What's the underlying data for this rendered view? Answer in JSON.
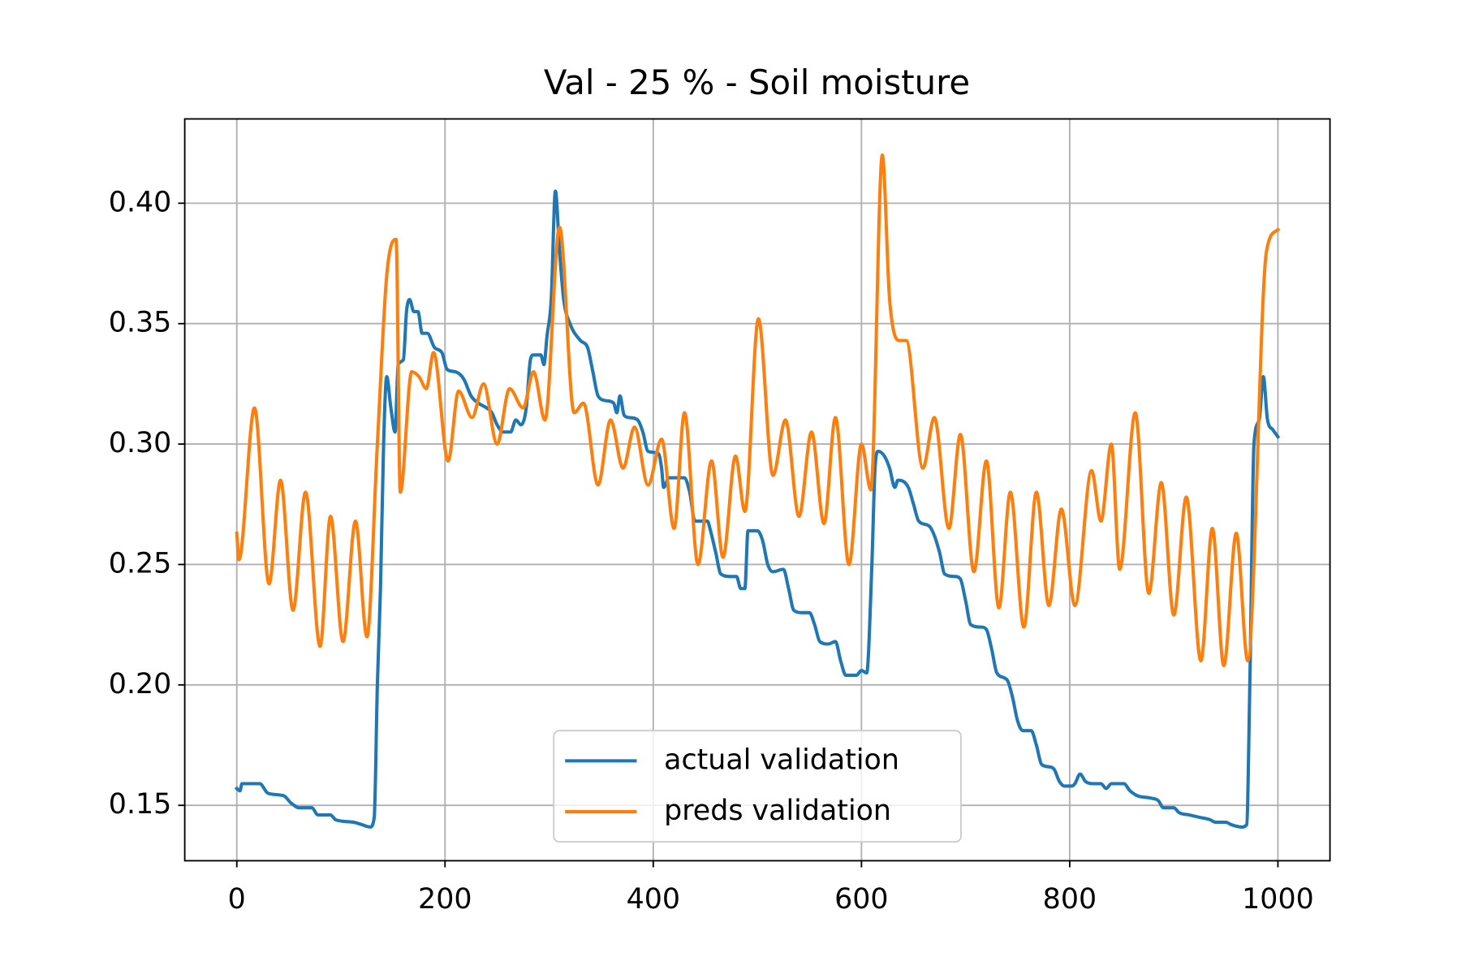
{
  "chart_data": {
    "type": "line",
    "title": "Val - 25 % - Soil moisture",
    "xlim": [
      -50,
      1050
    ],
    "xticks": [
      0,
      200,
      400,
      600,
      800,
      1000
    ],
    "ylim": [
      0.127,
      0.435
    ],
    "yticks": [
      {
        "value": 0.15,
        "label": "0.15"
      },
      {
        "value": 0.2,
        "label": "0.20"
      },
      {
        "value": 0.25,
        "label": "0.25"
      },
      {
        "value": 0.3,
        "label": "0.30"
      },
      {
        "value": 0.35,
        "label": "0.35"
      },
      {
        "value": 0.4,
        "label": "0.40"
      }
    ],
    "grid": true,
    "legend": "lower center",
    "series": [
      {
        "name": "actual validation",
        "color": "#1f77b4",
        "x": [
          0,
          3,
          5,
          22,
          30,
          45,
          52,
          60,
          72,
          78,
          90,
          95,
          112,
          120,
          128,
          132,
          135,
          138,
          141,
          144,
          148,
          152,
          155,
          160,
          163,
          166,
          170,
          174,
          178,
          183,
          190,
          197,
          202,
          210,
          218,
          225,
          232,
          240,
          245,
          250,
          256,
          263,
          268,
          273,
          278,
          282,
          285,
          292,
          295,
          298,
          302,
          306,
          310,
          314,
          320,
          330,
          337,
          342,
          347,
          355,
          362,
          365,
          368,
          372,
          377,
          385,
          390,
          395,
          405,
          408,
          410,
          415,
          430,
          435,
          440,
          452,
          455,
          460,
          465,
          475,
          480,
          484,
          488,
          491,
          500,
          505,
          510,
          515,
          525,
          530,
          535,
          543,
          550,
          555,
          560,
          568,
          575,
          580,
          585,
          595,
          600,
          605,
          610,
          613,
          616,
          622,
          627,
          632,
          635,
          645,
          650,
          655,
          665,
          670,
          675,
          680,
          690,
          695,
          700,
          705,
          715,
          720,
          725,
          730,
          740,
          745,
          750,
          755,
          763,
          768,
          773,
          780,
          785,
          790,
          795,
          802,
          805,
          810,
          815,
          822,
          830,
          835,
          840,
          852,
          858,
          865,
          878,
          885,
          890,
          900,
          905,
          915,
          925,
          935,
          940,
          950,
          955,
          965,
          970,
          973,
          977,
          982,
          986,
          990,
          995,
          1000
        ],
        "values": [
          0.157,
          0.156,
          0.159,
          0.159,
          0.155,
          0.154,
          0.151,
          0.149,
          0.149,
          0.146,
          0.146,
          0.144,
          0.143,
          0.142,
          0.141,
          0.145,
          0.2,
          0.24,
          0.3,
          0.328,
          0.315,
          0.305,
          0.333,
          0.335,
          0.355,
          0.36,
          0.355,
          0.355,
          0.346,
          0.346,
          0.34,
          0.338,
          0.331,
          0.33,
          0.327,
          0.32,
          0.317,
          0.315,
          0.313,
          0.308,
          0.305,
          0.305,
          0.31,
          0.308,
          0.315,
          0.335,
          0.337,
          0.337,
          0.333,
          0.345,
          0.36,
          0.405,
          0.38,
          0.36,
          0.35,
          0.343,
          0.34,
          0.33,
          0.32,
          0.318,
          0.317,
          0.313,
          0.32,
          0.312,
          0.311,
          0.31,
          0.305,
          0.297,
          0.296,
          0.29,
          0.282,
          0.286,
          0.286,
          0.28,
          0.268,
          0.268,
          0.264,
          0.255,
          0.246,
          0.245,
          0.245,
          0.24,
          0.24,
          0.264,
          0.264,
          0.26,
          0.25,
          0.247,
          0.248,
          0.24,
          0.231,
          0.23,
          0.23,
          0.225,
          0.218,
          0.217,
          0.218,
          0.21,
          0.204,
          0.204,
          0.206,
          0.205,
          0.25,
          0.29,
          0.297,
          0.295,
          0.29,
          0.282,
          0.285,
          0.282,
          0.275,
          0.268,
          0.266,
          0.262,
          0.255,
          0.246,
          0.245,
          0.244,
          0.235,
          0.225,
          0.224,
          0.223,
          0.215,
          0.205,
          0.202,
          0.195,
          0.185,
          0.181,
          0.181,
          0.175,
          0.167,
          0.166,
          0.165,
          0.16,
          0.158,
          0.158,
          0.159,
          0.163,
          0.16,
          0.159,
          0.159,
          0.157,
          0.159,
          0.159,
          0.156,
          0.154,
          0.153,
          0.152,
          0.149,
          0.149,
          0.147,
          0.146,
          0.145,
          0.144,
          0.143,
          0.143,
          0.142,
          0.141,
          0.142,
          0.2,
          0.3,
          0.31,
          0.328,
          0.31,
          0.306,
          0.303
        ]
      },
      {
        "name": "preds validation",
        "color": "#ff7f0e",
        "x": [
          0,
          2,
          17,
          31,
          42,
          54,
          66,
          80,
          90,
          102,
          114,
          125,
          135,
          144,
          153,
          157,
          168,
          175,
          182,
          189,
          203,
          213,
          226,
          237,
          250,
          262,
          275,
          285,
          296,
          310,
          324,
          333,
          347,
          359,
          371,
          382,
          395,
          408,
          420,
          430,
          443,
          456,
          467,
          479,
          488,
          501,
          515,
          527,
          540,
          552,
          564,
          575,
          588,
          600,
          609,
          620,
          627,
          637,
          643,
          659,
          670,
          684,
          695,
          708,
          720,
          732,
          743,
          756,
          768,
          780,
          792,
          805,
          821,
          830,
          840,
          848,
          863,
          876,
          888,
          900,
          912,
          926,
          937,
          948,
          960,
          971,
          989,
          1000
        ],
        "values": [
          0.263,
          0.252,
          0.315,
          0.242,
          0.285,
          0.231,
          0.28,
          0.216,
          0.27,
          0.218,
          0.268,
          0.22,
          0.3,
          0.37,
          0.385,
          0.28,
          0.33,
          0.328,
          0.323,
          0.338,
          0.293,
          0.322,
          0.311,
          0.325,
          0.3,
          0.323,
          0.315,
          0.33,
          0.31,
          0.39,
          0.313,
          0.317,
          0.283,
          0.31,
          0.29,
          0.307,
          0.283,
          0.302,
          0.265,
          0.313,
          0.25,
          0.293,
          0.253,
          0.295,
          0.272,
          0.352,
          0.287,
          0.31,
          0.27,
          0.305,
          0.267,
          0.311,
          0.25,
          0.3,
          0.281,
          0.42,
          0.36,
          0.343,
          0.343,
          0.29,
          0.311,
          0.265,
          0.304,
          0.247,
          0.293,
          0.232,
          0.28,
          0.224,
          0.28,
          0.233,
          0.273,
          0.233,
          0.289,
          0.268,
          0.3,
          0.248,
          0.313,
          0.238,
          0.284,
          0.229,
          0.278,
          0.21,
          0.265,
          0.208,
          0.263,
          0.21,
          0.38,
          0.389
        ]
      }
    ]
  }
}
